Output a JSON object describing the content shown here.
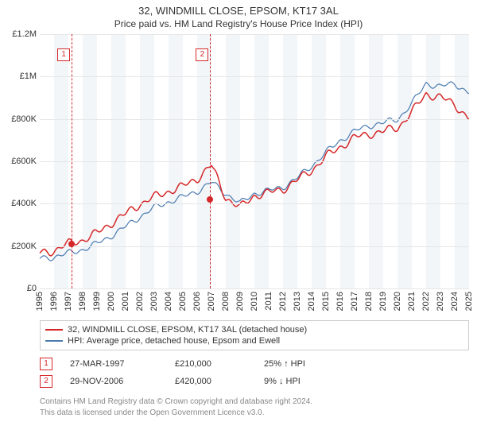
{
  "titles": {
    "line1": "32, WINDMILL CLOSE, EPSOM, KT17 3AL",
    "line2": "Price paid vs. HM Land Registry's House Price Index (HPI)"
  },
  "chart": {
    "type": "line",
    "x_years": [
      1995,
      1996,
      1997,
      1998,
      1999,
      2000,
      2001,
      2002,
      2003,
      2004,
      2005,
      2006,
      2007,
      2008,
      2009,
      2010,
      2011,
      2012,
      2013,
      2014,
      2015,
      2016,
      2017,
      2018,
      2019,
      2020,
      2021,
      2022,
      2023,
      2024,
      2025
    ],
    "y_ticks": [
      0,
      200000,
      400000,
      600000,
      800000,
      1000000,
      1200000
    ],
    "y_tick_labels": [
      "£0",
      "£200K",
      "£400K",
      "£600K",
      "£800K",
      "£1M",
      "£1.2M"
    ],
    "ylim": [
      0,
      1200000
    ],
    "background_color": "#ffffff",
    "alt_band_color": "#f2f6f9",
    "grid_color": "#e6e6e6",
    "axis_label_fontsize": 11,
    "series": {
      "price_paid": {
        "color": "#d62728",
        "width": 1.5,
        "values_by_year": {
          "1995": 165000,
          "1996": 180000,
          "1997": 210000,
          "1998": 230000,
          "1999": 260000,
          "2000": 310000,
          "2001": 350000,
          "2002": 400000,
          "2003": 430000,
          "2004": 460000,
          "2005": 480000,
          "2006": 520000,
          "2007": 580000,
          "2008": 430000,
          "2009": 380000,
          "2010": 440000,
          "2011": 450000,
          "2012": 470000,
          "2013": 510000,
          "2014": 560000,
          "2015": 620000,
          "2016": 670000,
          "2017": 710000,
          "2018": 730000,
          "2019": 740000,
          "2020": 760000,
          "2021": 830000,
          "2022": 920000,
          "2023": 900000,
          "2024": 870000,
          "2025": 800000
        }
      },
      "hpi": {
        "color": "#4a7ab0",
        "width": 1.2,
        "values_by_year": {
          "1995": 140000,
          "1996": 150000,
          "1997": 165000,
          "1998": 185000,
          "1999": 210000,
          "2000": 250000,
          "2001": 290000,
          "2002": 340000,
          "2003": 380000,
          "2004": 410000,
          "2005": 430000,
          "2006": 460000,
          "2007": 500000,
          "2008": 450000,
          "2009": 400000,
          "2010": 450000,
          "2011": 460000,
          "2012": 480000,
          "2013": 520000,
          "2014": 580000,
          "2015": 640000,
          "2016": 700000,
          "2017": 740000,
          "2018": 770000,
          "2019": 780000,
          "2020": 800000,
          "2021": 870000,
          "2022": 970000,
          "2023": 950000,
          "2024": 970000,
          "2025": 920000
        }
      }
    },
    "transactions": [
      {
        "num": "1",
        "year": 1997.23,
        "price": 210000
      },
      {
        "num": "2",
        "year": 2006.91,
        "price": 420000
      }
    ]
  },
  "legend": {
    "items": [
      {
        "color": "#d62728",
        "label": "32, WINDMILL CLOSE, EPSOM, KT17 3AL (detached house)"
      },
      {
        "color": "#4a7ab0",
        "label": "HPI: Average price, detached house, Epsom and Ewell"
      }
    ]
  },
  "tx_table": {
    "rows": [
      {
        "num": "1",
        "date": "27-MAR-1997",
        "price": "£210,000",
        "delta": "25% ↑ HPI"
      },
      {
        "num": "2",
        "date": "29-NOV-2006",
        "price": "£420,000",
        "delta": "9% ↓ HPI"
      }
    ]
  },
  "footer": {
    "line1": "Contains HM Land Registry data © Crown copyright and database right 2024.",
    "line2": "This data is licensed under the Open Government Licence v3.0."
  }
}
